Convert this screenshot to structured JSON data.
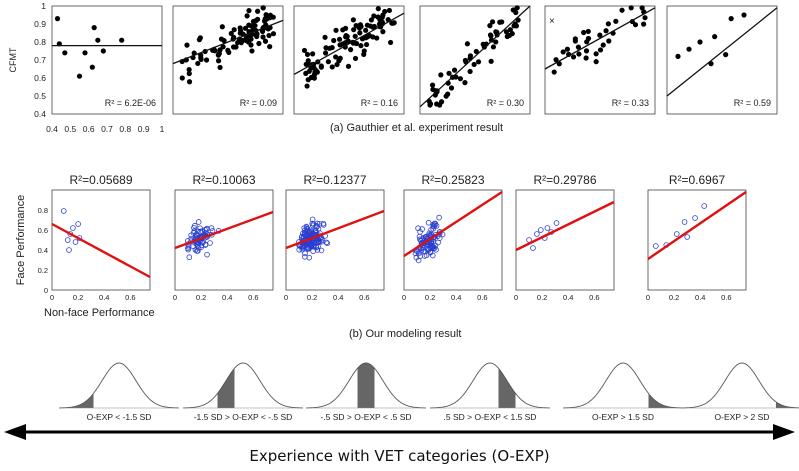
{
  "caption_a": "(a)  Gauthier et al. experiment result",
  "caption_b": "(b)    Our modeling result",
  "footer": "Experience with VET categories (O-EXP)",
  "colors": {
    "top_points": "#000000",
    "mid_points": "#2a3fd0",
    "mid_line": "#e01010",
    "shade": "#666666"
  },
  "chart_data": [
    {
      "type": "scatter",
      "group": "a",
      "ylabel": "CFMT",
      "xlim": [
        0.4,
        1
      ],
      "ylim": [
        0.4,
        1
      ],
      "x_ticks": [
        "0.4",
        "0.5",
        "0.6",
        "0.7",
        "0.8",
        "0.9",
        "1"
      ],
      "y_ticks": [
        "0.4",
        "0.5",
        "0.6",
        "0.7",
        "0.8",
        "0.9",
        "1"
      ],
      "panels": [
        {
          "r2_label": "R² = 6.2E-06",
          "r2_pos": "bottom-right",
          "points": [
            [
              0.43,
              0.93
            ],
            [
              0.44,
              0.79
            ],
            [
              0.47,
              0.74
            ],
            [
              0.55,
              0.61
            ],
            [
              0.58,
              0.74
            ],
            [
              0.62,
              0.66
            ],
            [
              0.63,
              0.88
            ],
            [
              0.65,
              0.81
            ],
            [
              0.68,
              0.75
            ],
            [
              0.78,
              0.81
            ]
          ],
          "fit": [
            [
              0.4,
              0.78
            ],
            [
              1.0,
              0.78
            ]
          ]
        },
        {
          "r2_label": "R² = 0.09",
          "r2_pos": "bottom-right",
          "fit": [
            [
              0.4,
              0.68
            ],
            [
              1.0,
              0.92
            ]
          ]
        },
        {
          "r2_label": "R² = 0.16",
          "r2_pos": "bottom-right",
          "fit": [
            [
              0.4,
              0.62
            ],
            [
              1.0,
              0.96
            ]
          ]
        },
        {
          "r2_label": "R² = 0.30",
          "r2_pos": "bottom-right",
          "fit": [
            [
              0.4,
              0.44
            ],
            [
              1.0,
              1.0
            ]
          ]
        },
        {
          "r2_label": "R² = 0.33",
          "r2_pos": "bottom-right",
          "fit": [
            [
              0.4,
              0.65
            ],
            [
              1.0,
              0.99
            ]
          ]
        },
        {
          "r2_label": "R² = 0.59",
          "r2_pos": "bottom-right",
          "points": [
            [
              0.46,
              0.72
            ],
            [
              0.52,
              0.76
            ],
            [
              0.58,
              0.8
            ],
            [
              0.64,
              0.68
            ],
            [
              0.66,
              0.83
            ],
            [
              0.72,
              0.73
            ],
            [
              0.75,
              0.93
            ],
            [
              0.82,
              0.95
            ]
          ],
          "fit": [
            [
              0.4,
              0.5
            ],
            [
              1.0,
              0.99
            ]
          ]
        }
      ]
    },
    {
      "type": "scatter",
      "group": "b",
      "ylabel": "Face Performance",
      "xlabel": "Non-face Performance",
      "xlim": [
        0,
        0.75
      ],
      "ylim": [
        0,
        1
      ],
      "x_ticks": [
        "0",
        "0.2",
        "0.4",
        "0.6"
      ],
      "y_ticks": [
        "0",
        "0.2",
        "0.4",
        "0.6",
        "0.8"
      ],
      "panels": [
        {
          "r2_label": "R²=0.05689",
          "points": [
            [
              0.09,
              0.79
            ],
            [
              0.12,
              0.5
            ],
            [
              0.13,
              0.4
            ],
            [
              0.14,
              0.56
            ],
            [
              0.16,
              0.62
            ],
            [
              0.18,
              0.48
            ],
            [
              0.2,
              0.66
            ],
            [
              0.21,
              0.52
            ]
          ],
          "fit": [
            [
              0.0,
              0.66
            ],
            [
              0.75,
              0.13
            ]
          ]
        },
        {
          "r2_label": "R²=0.10063",
          "fit": [
            [
              0.0,
              0.42
            ],
            [
              0.75,
              0.78
            ]
          ]
        },
        {
          "r2_label": "R²=0.12377",
          "fit": [
            [
              0.0,
              0.42
            ],
            [
              0.75,
              0.79
            ]
          ]
        },
        {
          "r2_label": "R²=0.25823",
          "fit": [
            [
              0.0,
              0.34
            ],
            [
              0.75,
              0.98
            ]
          ]
        },
        {
          "r2_label": "R²=0.29786",
          "points": [
            [
              0.1,
              0.5
            ],
            [
              0.13,
              0.42
            ],
            [
              0.16,
              0.56
            ],
            [
              0.19,
              0.6
            ],
            [
              0.22,
              0.52
            ],
            [
              0.24,
              0.62
            ],
            [
              0.27,
              0.58
            ],
            [
              0.31,
              0.67
            ]
          ],
          "fit": [
            [
              0.0,
              0.4
            ],
            [
              0.75,
              0.88
            ]
          ]
        },
        {
          "r2_label": "R²=0.6967",
          "points": [
            [
              0.06,
              0.44
            ],
            [
              0.14,
              0.45
            ],
            [
              0.22,
              0.56
            ],
            [
              0.28,
              0.68
            ],
            [
              0.3,
              0.53
            ],
            [
              0.36,
              0.72
            ],
            [
              0.43,
              0.84
            ]
          ],
          "fit": [
            [
              0.0,
              0.31
            ],
            [
              0.75,
              0.98
            ]
          ]
        }
      ]
    },
    {
      "type": "area",
      "group": "c",
      "description_free": true,
      "panels": [
        {
          "label": "O-EXP < -1.5 SD",
          "shade_sd": [
            -4,
            -1.5
          ]
        },
        {
          "label": "-1.5 SD > O-EXP < -.5 SD",
          "shade_sd": [
            -1.5,
            -0.5
          ]
        },
        {
          "label": "-.5 SD > O-EXP < .5 SD",
          "shade_sd": [
            -0.5,
            0.5
          ]
        },
        {
          "label": ".5 SD > O-EXP < 1.5 SD",
          "shade_sd": [
            0.5,
            1.5
          ]
        },
        {
          "label": "O-EXP > 1.5 SD",
          "shade_sd": [
            1.5,
            4
          ]
        },
        {
          "label": "O-EXP > 2 SD",
          "shade_sd": [
            2,
            4
          ]
        }
      ]
    }
  ]
}
